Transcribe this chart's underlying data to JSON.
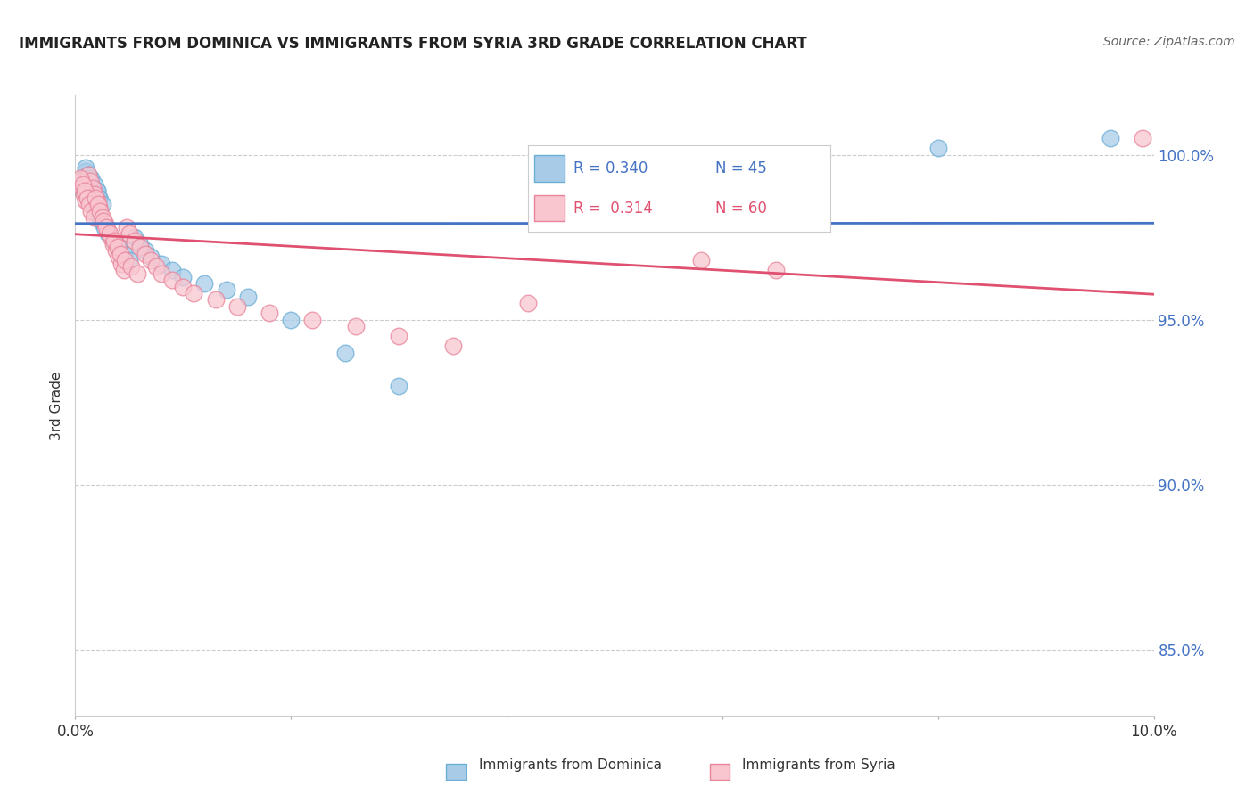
{
  "title": "IMMIGRANTS FROM DOMINICA VS IMMIGRANTS FROM SYRIA 3RD GRADE CORRELATION CHART",
  "source": "Source: ZipAtlas.com",
  "ylabel": "3rd Grade",
  "xmin": 0.0,
  "xmax": 10.0,
  "ymin": 83.0,
  "ymax": 101.8,
  "yticks": [
    85.0,
    90.0,
    95.0,
    100.0
  ],
  "ytick_labels": [
    "85.0%",
    "90.0%",
    "95.0%",
    "100.0%"
  ],
  "dominica_color": "#a8cce8",
  "dominica_edge_color": "#6aaed6",
  "syria_color": "#f9c6d0",
  "syria_edge_color": "#e8849a",
  "dominica_line_color": "#4472c4",
  "syria_line_color": "#e05070",
  "legend_r_dominica": "R = 0.340",
  "legend_n_dominica": "N = 45",
  "legend_r_syria": "R =  0.314",
  "legend_n_syria": "N = 60",
  "legend_r_dom_color": "#4472c4",
  "legend_r_syr_color": "#e05070",
  "dominica_x": [
    0.05,
    0.08,
    0.1,
    0.12,
    0.13,
    0.15,
    0.17,
    0.18,
    0.2,
    0.22,
    0.1,
    0.12,
    0.15,
    0.18,
    0.2,
    0.22,
    0.25,
    0.08,
    0.11,
    0.14,
    0.16,
    0.19,
    0.21,
    0.24,
    0.27,
    0.3,
    0.35,
    0.4,
    0.45,
    0.5,
    0.55,
    0.6,
    0.65,
    0.7,
    0.8,
    0.9,
    1.0,
    1.2,
    1.4,
    1.6,
    2.0,
    2.5,
    3.0,
    8.0,
    9.6
  ],
  "dominica_y": [
    99.0,
    99.2,
    99.5,
    99.1,
    99.3,
    98.8,
    99.0,
    98.6,
    98.9,
    98.7,
    99.6,
    99.4,
    99.3,
    99.1,
    98.9,
    98.7,
    98.5,
    99.2,
    99.0,
    98.8,
    98.6,
    98.4,
    98.2,
    98.0,
    97.8,
    97.6,
    97.4,
    97.2,
    97.0,
    96.8,
    97.5,
    97.3,
    97.1,
    96.9,
    96.7,
    96.5,
    96.3,
    96.1,
    95.9,
    95.7,
    95.0,
    94.0,
    93.0,
    100.2,
    100.5
  ],
  "syria_x": [
    0.04,
    0.06,
    0.08,
    0.1,
    0.12,
    0.14,
    0.16,
    0.18,
    0.2,
    0.22,
    0.05,
    0.07,
    0.09,
    0.11,
    0.13,
    0.15,
    0.17,
    0.19,
    0.21,
    0.23,
    0.25,
    0.28,
    0.3,
    0.33,
    0.35,
    0.38,
    0.4,
    0.43,
    0.45,
    0.48,
    0.5,
    0.55,
    0.6,
    0.65,
    0.7,
    0.75,
    0.8,
    0.9,
    1.0,
    1.1,
    1.3,
    1.5,
    1.8,
    2.2,
    2.6,
    3.0,
    3.5,
    4.2,
    5.8,
    6.5,
    0.26,
    0.29,
    0.32,
    0.36,
    0.39,
    0.42,
    0.46,
    0.52,
    0.58,
    9.9
  ],
  "syria_y": [
    99.2,
    99.0,
    98.8,
    98.6,
    99.4,
    99.2,
    99.0,
    98.8,
    98.6,
    98.4,
    99.3,
    99.1,
    98.9,
    98.7,
    98.5,
    98.3,
    98.1,
    98.7,
    98.5,
    98.3,
    98.1,
    97.9,
    97.7,
    97.5,
    97.3,
    97.1,
    96.9,
    96.7,
    96.5,
    97.8,
    97.6,
    97.4,
    97.2,
    97.0,
    96.8,
    96.6,
    96.4,
    96.2,
    96.0,
    95.8,
    95.6,
    95.4,
    95.2,
    95.0,
    94.8,
    94.5,
    94.2,
    95.5,
    96.8,
    96.5,
    98.0,
    97.8,
    97.6,
    97.4,
    97.2,
    97.0,
    96.8,
    96.6,
    96.4,
    100.5
  ]
}
